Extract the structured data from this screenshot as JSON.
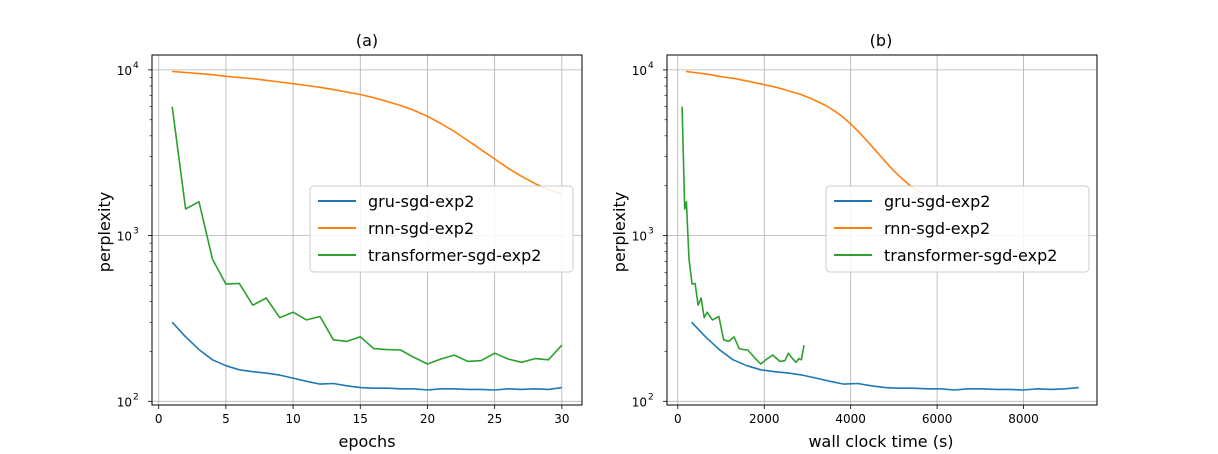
{
  "colors": {
    "gru": "#1f77b4",
    "rnn": "#ff7f0e",
    "transformer": "#2ca02c",
    "grid": "#b0b0b0",
    "axes": "#000000"
  },
  "chart_data": [
    {
      "type": "line",
      "title": "(a)",
      "xlabel": "epochs",
      "ylabel": "perplexity",
      "yscale": "log",
      "xlim": [
        -0.5,
        31.5
      ],
      "ylim": [
        95,
        12300
      ],
      "xticks": [
        0,
        5,
        10,
        15,
        20,
        25,
        30
      ],
      "xtick_labels": [
        "0",
        "5",
        "10",
        "15",
        "20",
        "25",
        "30"
      ],
      "yticks": [
        100,
        1000,
        10000
      ],
      "ytick_labels": [
        {
          "base": "10",
          "exp": "2"
        },
        {
          "base": "10",
          "exp": "3"
        },
        {
          "base": "10",
          "exp": "4"
        }
      ],
      "grid": true,
      "legend_position": "center-right",
      "series": [
        {
          "name": "gru-sgd-exp2",
          "color_key": "gru",
          "x": [
            1,
            2,
            3,
            4,
            5,
            6,
            7,
            8,
            9,
            10,
            11,
            12,
            13,
            14,
            15,
            16,
            17,
            18,
            19,
            20,
            21,
            22,
            23,
            24,
            25,
            26,
            27,
            28,
            29,
            30
          ],
          "y": [
            300,
            245,
            205,
            178,
            164,
            155,
            151,
            148,
            144,
            138,
            132,
            127,
            128,
            124,
            121,
            120,
            120,
            119,
            119,
            117,
            119,
            119,
            118,
            118,
            117,
            119,
            118,
            119,
            118,
            121
          ]
        },
        {
          "name": "rnn-sgd-exp2",
          "color_key": "rnn",
          "x": [
            1,
            2,
            3,
            4,
            5,
            6,
            7,
            8,
            9,
            10,
            11,
            12,
            13,
            14,
            15,
            16,
            17,
            18,
            19,
            20,
            21,
            22,
            23,
            24,
            25,
            26,
            27,
            28,
            29,
            30
          ],
          "y": [
            9800,
            9650,
            9500,
            9350,
            9150,
            9000,
            8850,
            8650,
            8450,
            8250,
            8050,
            7850,
            7600,
            7350,
            7100,
            6800,
            6450,
            6100,
            5700,
            5250,
            4750,
            4250,
            3750,
            3300,
            2900,
            2550,
            2280,
            2060,
            1900,
            1780
          ]
        },
        {
          "name": "transformer-sgd-exp2",
          "color_key": "transformer",
          "x": [
            1,
            2,
            3,
            4,
            5,
            6,
            7,
            8,
            9,
            10,
            11,
            12,
            13,
            14,
            15,
            16,
            17,
            18,
            19,
            20,
            21,
            22,
            23,
            24,
            25,
            26,
            27,
            28,
            29,
            30
          ],
          "y": [
            6000,
            1450,
            1600,
            720,
            510,
            515,
            380,
            420,
            320,
            345,
            310,
            325,
            235,
            230,
            245,
            208,
            205,
            204,
            184,
            168,
            180,
            190,
            174,
            176,
            195,
            180,
            172,
            181,
            178,
            218
          ]
        }
      ]
    },
    {
      "type": "line",
      "title": "(b)",
      "xlabel": "wall clock time (s)",
      "ylabel": "perplexity",
      "yscale": "log",
      "xlim": [
        -250,
        9700
      ],
      "ylim": [
        95,
        12300
      ],
      "xticks": [
        0,
        2000,
        4000,
        6000,
        8000
      ],
      "xtick_labels": [
        "0",
        "2000",
        "4000",
        "6000",
        "8000"
      ],
      "yticks": [
        100,
        1000,
        10000
      ],
      "ytick_labels": [
        {
          "base": "10",
          "exp": "2"
        },
        {
          "base": "10",
          "exp": "3"
        },
        {
          "base": "10",
          "exp": "4"
        }
      ],
      "grid": true,
      "legend_position": "center-right",
      "series": [
        {
          "name": "gru-sgd-exp2",
          "color_key": "gru",
          "x": [
            320,
            640,
            960,
            1280,
            1600,
            1920,
            2240,
            2560,
            2880,
            3200,
            3520,
            3840,
            4160,
            4480,
            4800,
            5120,
            5440,
            5760,
            6080,
            6400,
            6720,
            7040,
            7360,
            7680,
            8000,
            8320,
            8640,
            8960,
            9280
          ],
          "y": [
            300,
            245,
            205,
            178,
            164,
            155,
            151,
            148,
            144,
            138,
            132,
            127,
            128,
            124,
            121,
            120,
            120,
            119,
            119,
            117,
            119,
            119,
            118,
            118,
            117,
            119,
            118,
            119,
            121
          ]
        },
        {
          "name": "rnn-sgd-exp2",
          "color_key": "rnn",
          "x": [
            190,
            380,
            570,
            760,
            950,
            1140,
            1330,
            1520,
            1710,
            1900,
            2090,
            2280,
            2470,
            2660,
            2850,
            3040,
            3230,
            3420,
            3610,
            3800,
            3990,
            4180,
            4370,
            4560,
            4750,
            4940,
            5130,
            5320,
            5510,
            5700
          ],
          "y": [
            9800,
            9650,
            9500,
            9350,
            9150,
            9000,
            8850,
            8650,
            8450,
            8250,
            8050,
            7850,
            7600,
            7350,
            7100,
            6800,
            6450,
            6100,
            5700,
            5250,
            4750,
            4250,
            3750,
            3300,
            2900,
            2550,
            2280,
            2060,
            1900,
            1780
          ]
        },
        {
          "name": "transformer-sgd-exp2",
          "color_key": "transformer",
          "x": [
            100,
            160,
            200,
            260,
            330,
            400,
            470,
            540,
            610,
            680,
            800,
            950,
            1060,
            1180,
            1300,
            1420,
            1520,
            1620,
            1770,
            1920,
            2060,
            2200,
            2360,
            2480,
            2560,
            2660,
            2740,
            2800,
            2860,
            2920
          ],
          "y": [
            6000,
            1450,
            1600,
            720,
            510,
            515,
            380,
            420,
            320,
            345,
            310,
            325,
            235,
            230,
            245,
            208,
            205,
            204,
            184,
            168,
            180,
            190,
            174,
            176,
            195,
            180,
            172,
            181,
            178,
            218
          ]
        }
      ]
    }
  ]
}
